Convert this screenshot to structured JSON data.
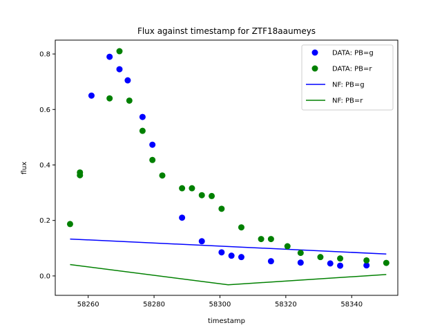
{
  "chart_data": {
    "type": "scatter",
    "title": "Flux against timestamp for ZTF18aaumeys",
    "xlabel": "timestamp",
    "ylabel": "flux",
    "xlim": [
      58250,
      58354
    ],
    "ylim": [
      -0.07,
      0.85
    ],
    "xticks": [
      58260,
      58280,
      58300,
      58320,
      58340
    ],
    "yticks": [
      0.0,
      0.2,
      0.4,
      0.6,
      0.8
    ],
    "xtick_labels": [
      "58260",
      "58280",
      "58300",
      "58320",
      "58340"
    ],
    "ytick_labels": [
      "0.0",
      "0.2",
      "0.4",
      "0.6",
      "0.8"
    ],
    "grid": false,
    "legend_position": "top-right",
    "series": [
      {
        "name": "DATA: PB=g",
        "kind": "points",
        "color": "#0000ff",
        "x": [
          58261,
          58266.5,
          58269.5,
          58272,
          58276.5,
          58279.5,
          58288.5,
          58294.5,
          58300.5,
          58303.5,
          58306.5,
          58315.5,
          58324.5,
          58333.5,
          58336.5,
          58344.5
        ],
        "y": [
          0.65,
          0.79,
          0.745,
          0.705,
          0.573,
          0.473,
          0.21,
          0.125,
          0.085,
          0.073,
          0.068,
          0.053,
          0.048,
          0.045,
          0.037,
          0.038
        ]
      },
      {
        "name": "DATA: PB=r",
        "kind": "points",
        "color": "#008000",
        "x": [
          58254.5,
          58257.5,
          58257.5,
          58266.5,
          58269.5,
          58272.5,
          58276.5,
          58279.5,
          58282.5,
          58288.5,
          58291.5,
          58294.5,
          58297.5,
          58300.5,
          58306.5,
          58312.5,
          58315.5,
          58320.5,
          58324.5,
          58330.5,
          58336.5,
          58344.5,
          58350.5
        ],
        "y": [
          0.187,
          0.373,
          0.363,
          0.64,
          0.81,
          0.632,
          0.523,
          0.418,
          0.362,
          0.316,
          0.316,
          0.291,
          0.288,
          0.242,
          0.175,
          0.133,
          0.133,
          0.107,
          0.083,
          0.068,
          0.063,
          0.056,
          0.047
        ]
      },
      {
        "name": "NF: PB=g",
        "kind": "line",
        "color": "#0000ff",
        "x": [
          58254.5,
          58350.5
        ],
        "y": [
          0.133,
          0.079
        ]
      },
      {
        "name": "NF: PB=r",
        "kind": "line",
        "color": "#008000",
        "x": [
          58254.5,
          58302.5,
          58350.5
        ],
        "y": [
          0.041,
          -0.032,
          0.005
        ]
      }
    ]
  }
}
